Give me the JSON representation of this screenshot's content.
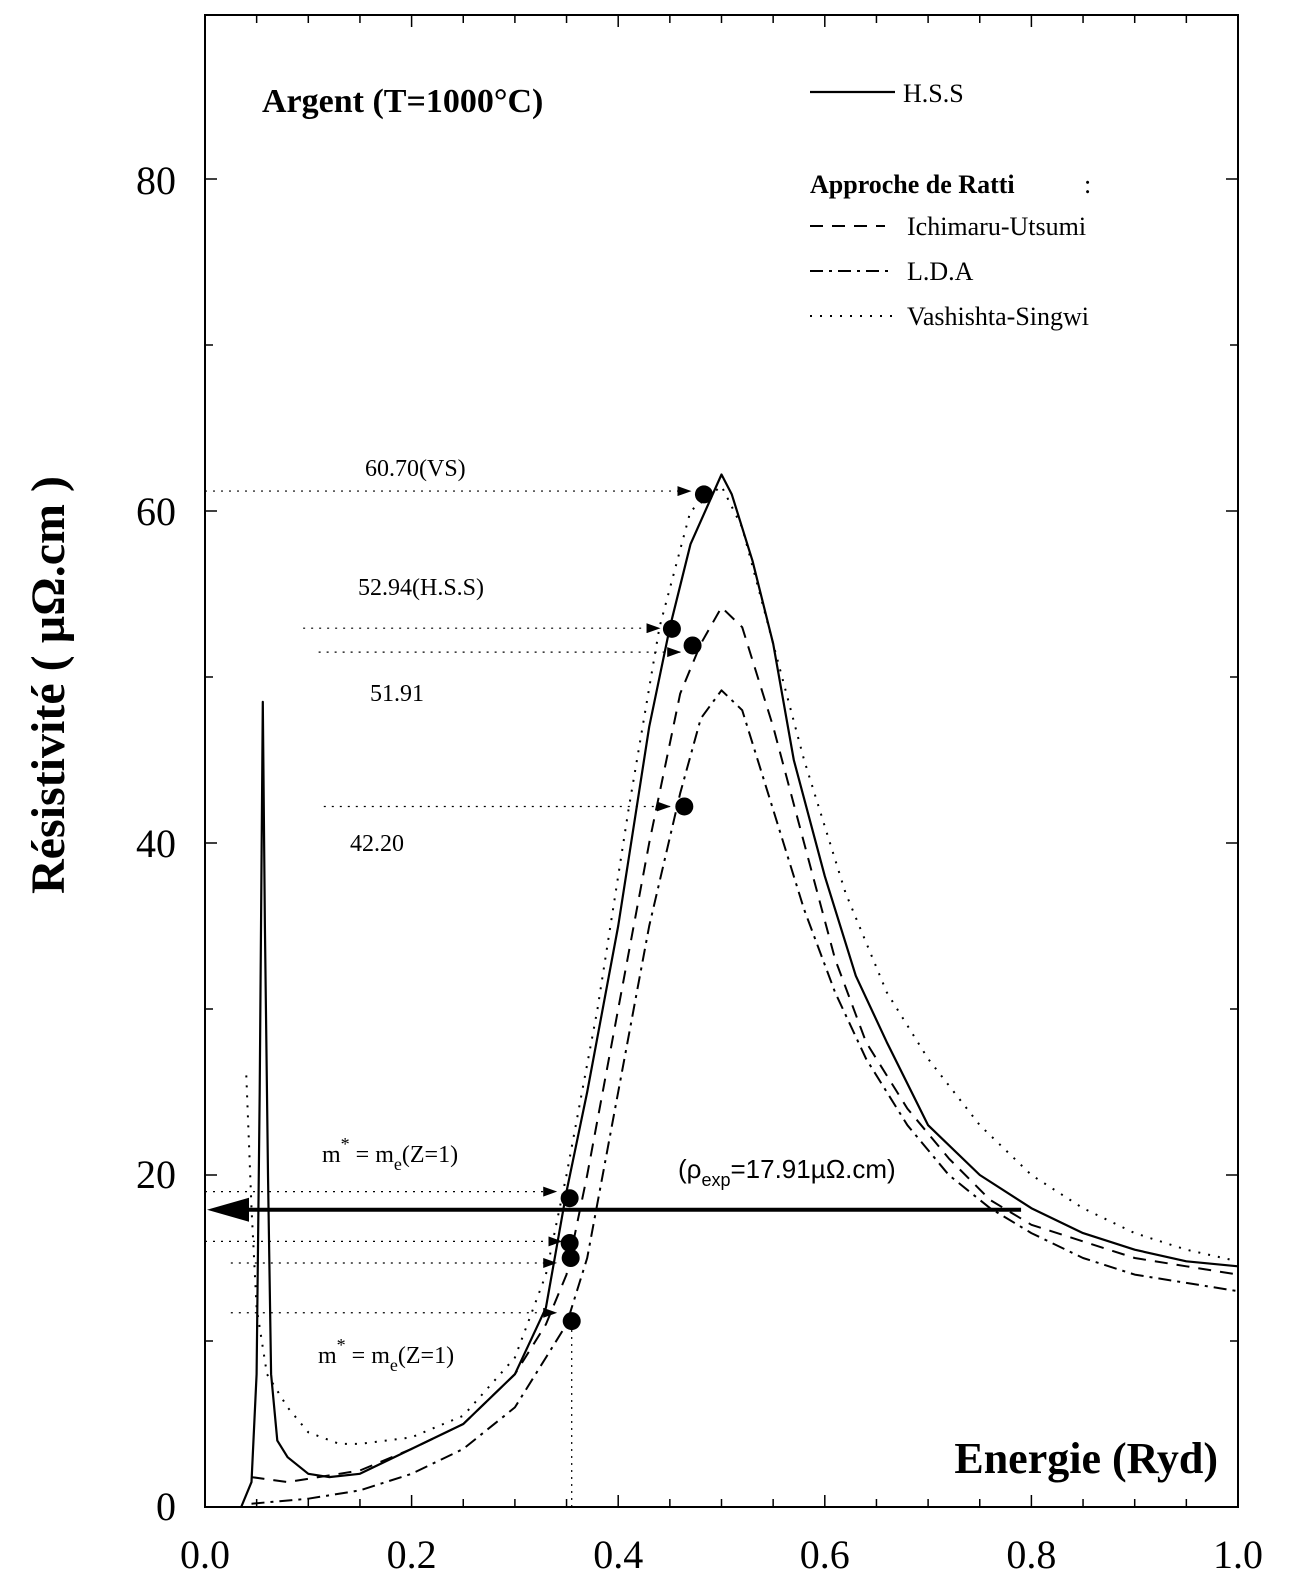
{
  "chart_data": {
    "type": "line",
    "title": "Argent (T=1000°C)",
    "xlabel": "Energie (Ryd)",
    "ylabel": "Résistivité ( µΩ.cm )",
    "xlim": [
      0.0,
      1.0
    ],
    "ylim": [
      0,
      90
    ],
    "x_ticks": [
      "0.0",
      "0.2",
      "0.4",
      "0.6",
      "0.8",
      "1.0"
    ],
    "y_ticks": [
      "0",
      "20",
      "40",
      "60",
      "80"
    ],
    "grid": false,
    "legend_position": "top-right",
    "legend_heading": "Approche de Ratti",
    "series": [
      {
        "name": "H.S.S",
        "style": "solid",
        "points": [
          [
            0.035,
            0.0
          ],
          [
            0.045,
            1.5
          ],
          [
            0.05,
            8
          ],
          [
            0.053,
            25
          ],
          [
            0.056,
            48.5
          ],
          [
            0.058,
            35
          ],
          [
            0.061,
            20
          ],
          [
            0.064,
            8
          ],
          [
            0.07,
            4
          ],
          [
            0.08,
            3
          ],
          [
            0.1,
            2
          ],
          [
            0.12,
            1.8
          ],
          [
            0.15,
            2
          ],
          [
            0.2,
            3.5
          ],
          [
            0.25,
            5
          ],
          [
            0.3,
            8
          ],
          [
            0.33,
            12
          ],
          [
            0.35,
            19
          ],
          [
            0.37,
            25
          ],
          [
            0.4,
            35
          ],
          [
            0.43,
            47
          ],
          [
            0.45,
            53
          ],
          [
            0.47,
            58
          ],
          [
            0.5,
            62.2
          ],
          [
            0.51,
            61
          ],
          [
            0.53,
            57
          ],
          [
            0.55,
            52
          ],
          [
            0.57,
            45
          ],
          [
            0.6,
            38
          ],
          [
            0.63,
            32
          ],
          [
            0.66,
            28
          ],
          [
            0.7,
            23
          ],
          [
            0.75,
            20
          ],
          [
            0.8,
            18
          ],
          [
            0.85,
            16.5
          ],
          [
            0.9,
            15.5
          ],
          [
            0.95,
            14.8
          ],
          [
            1.0,
            14.5
          ]
        ]
      },
      {
        "name": "Ichimaru-Utsumi",
        "style": "dashed",
        "points": [
          [
            0.045,
            1.8
          ],
          [
            0.08,
            1.5
          ],
          [
            0.15,
            2.2
          ],
          [
            0.2,
            3.5
          ],
          [
            0.25,
            5
          ],
          [
            0.3,
            8
          ],
          [
            0.33,
            11
          ],
          [
            0.35,
            14
          ],
          [
            0.37,
            20
          ],
          [
            0.4,
            30
          ],
          [
            0.43,
            40
          ],
          [
            0.46,
            49
          ],
          [
            0.48,
            52
          ],
          [
            0.5,
            54.2
          ],
          [
            0.52,
            53
          ],
          [
            0.55,
            47
          ],
          [
            0.58,
            40
          ],
          [
            0.61,
            33
          ],
          [
            0.64,
            28
          ],
          [
            0.68,
            24
          ],
          [
            0.72,
            21
          ],
          [
            0.76,
            18.5
          ],
          [
            0.8,
            17
          ],
          [
            0.85,
            16
          ],
          [
            0.9,
            15
          ],
          [
            0.95,
            14.5
          ],
          [
            1.0,
            14
          ]
        ]
      },
      {
        "name": "L.D.A",
        "style": "dashdot",
        "points": [
          [
            0.045,
            0.2
          ],
          [
            0.1,
            0.5
          ],
          [
            0.15,
            1
          ],
          [
            0.2,
            2
          ],
          [
            0.25,
            3.5
          ],
          [
            0.3,
            6
          ],
          [
            0.33,
            9
          ],
          [
            0.35,
            11
          ],
          [
            0.37,
            15
          ],
          [
            0.4,
            25
          ],
          [
            0.43,
            35
          ],
          [
            0.46,
            43
          ],
          [
            0.48,
            47.5
          ],
          [
            0.5,
            49.2
          ],
          [
            0.52,
            48
          ],
          [
            0.55,
            42
          ],
          [
            0.58,
            36
          ],
          [
            0.61,
            31
          ],
          [
            0.64,
            27
          ],
          [
            0.68,
            23
          ],
          [
            0.72,
            20
          ],
          [
            0.76,
            18
          ],
          [
            0.8,
            16.5
          ],
          [
            0.85,
            15
          ],
          [
            0.9,
            14
          ],
          [
            0.95,
            13.5
          ],
          [
            1.0,
            13
          ]
        ]
      },
      {
        "name": "Vashishta-Singwi",
        "style": "dotted",
        "points": [
          [
            0.04,
            26
          ],
          [
            0.045,
            18
          ],
          [
            0.05,
            12
          ],
          [
            0.06,
            8
          ],
          [
            0.08,
            6
          ],
          [
            0.1,
            4.5
          ],
          [
            0.13,
            3.8
          ],
          [
            0.15,
            3.8
          ],
          [
            0.2,
            4.2
          ],
          [
            0.25,
            5.5
          ],
          [
            0.3,
            9
          ],
          [
            0.33,
            14
          ],
          [
            0.35,
            20
          ],
          [
            0.38,
            30
          ],
          [
            0.41,
            42
          ],
          [
            0.44,
            53
          ],
          [
            0.47,
            60
          ],
          [
            0.5,
            61.5
          ],
          [
            0.52,
            59
          ],
          [
            0.55,
            52
          ],
          [
            0.58,
            45
          ],
          [
            0.62,
            37
          ],
          [
            0.66,
            31
          ],
          [
            0.7,
            27
          ],
          [
            0.75,
            23
          ],
          [
            0.8,
            20
          ],
          [
            0.85,
            18
          ],
          [
            0.9,
            16.5
          ],
          [
            0.95,
            15.5
          ],
          [
            1.0,
            14.8
          ]
        ]
      }
    ],
    "markers": [
      {
        "x": 0.483,
        "y": 61.0
      },
      {
        "x": 0.452,
        "y": 52.9
      },
      {
        "x": 0.472,
        "y": 51.9
      },
      {
        "x": 0.464,
        "y": 42.2
      },
      {
        "x": 0.353,
        "y": 18.6
      },
      {
        "x": 0.353,
        "y": 15.9
      },
      {
        "x": 0.354,
        "y": 15.0
      },
      {
        "x": 0.355,
        "y": 11.2
      }
    ],
    "reference_lines": [
      {
        "y": 61.2,
        "x_from": 0.0,
        "x_to": 0.47
      },
      {
        "y": 52.94,
        "x_from": 0.095,
        "x_to": 0.44
      },
      {
        "y": 51.5,
        "x_from": 0.11,
        "x_to": 0.46
      },
      {
        "y": 42.2,
        "x_from": 0.115,
        "x_to": 0.45
      },
      {
        "y": 19.0,
        "x_from": 0.0,
        "x_to": 0.34
      },
      {
        "y": 16.0,
        "x_from": 0.0,
        "x_to": 0.345
      },
      {
        "y": 14.7,
        "x_from": 0.025,
        "x_to": 0.34
      },
      {
        "y": 11.7,
        "x_from": 0.025,
        "x_to": 0.34
      }
    ],
    "vertical_reference": {
      "x": 0.355,
      "y_from": 0,
      "y_to": 11
    },
    "experimental_value": {
      "y": 17.91,
      "x_from": 0.0,
      "x_to": 0.79
    },
    "annotations": {
      "vs": "60.70(VS)",
      "hss": "52.94(H.S.S)",
      "iu": "51.91",
      "lda": "42.20",
      "mstar_top_base": "m",
      "mstar_top_sup": "*",
      "mstar_top_mid": " = m",
      "mstar_top_sub": "e",
      "mstar_top_end": "(Z=1)",
      "mstar_bot_base": "m",
      "mstar_bot_sup": "*",
      "mstar_bot_mid": " = m",
      "mstar_bot_sub": "e",
      "mstar_bot_end": "(Z=1)",
      "rho_open": "(ρ",
      "rho_sub": "exp",
      "rho_rest": "=17.91µΩ.cm)"
    }
  }
}
